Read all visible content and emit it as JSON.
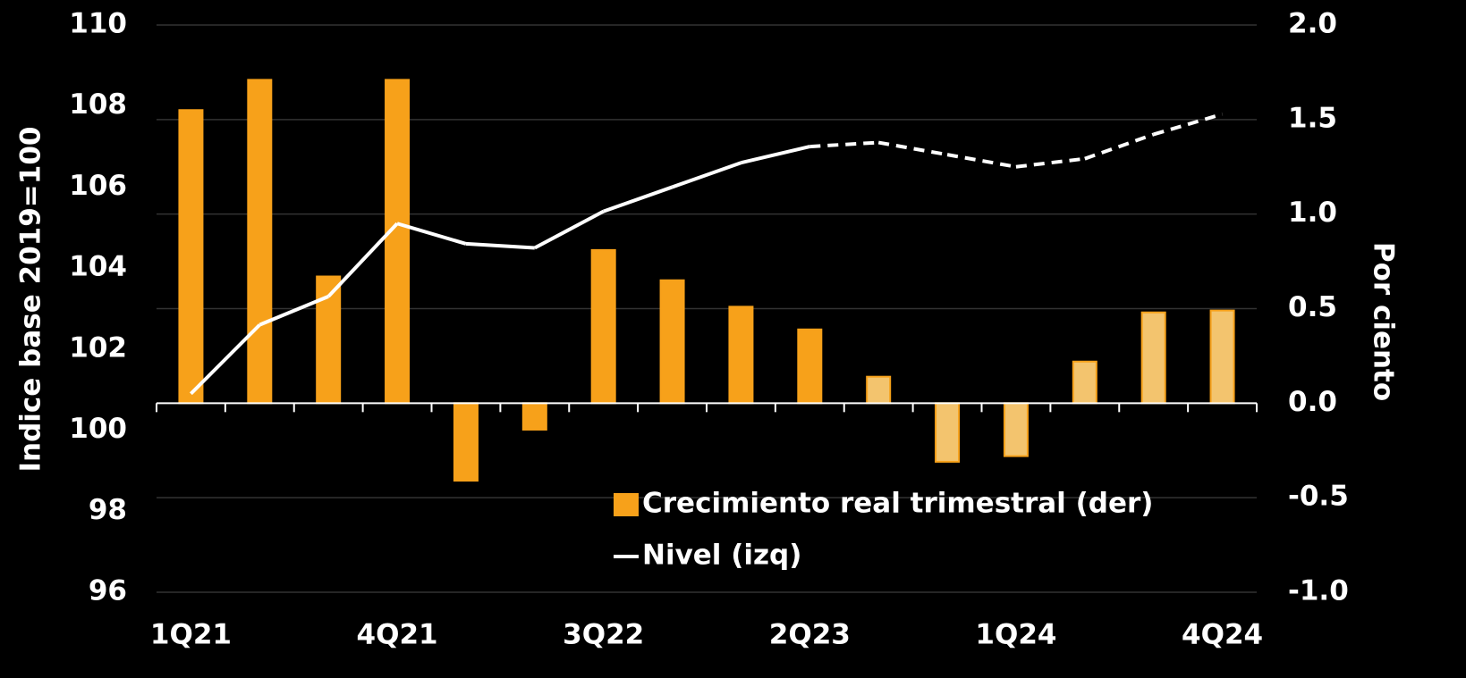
{
  "chart_data": {
    "type": "bar",
    "categories": [
      "1Q21",
      null,
      null,
      "4Q21",
      null,
      null,
      "3Q22",
      null,
      null,
      "2Q23",
      null,
      null,
      "1Q24",
      null,
      null,
      "4Q24"
    ],
    "series": [
      {
        "name": "Crecimiento real trimestral (der)",
        "type": "bar",
        "axis": "y2",
        "color": "#f7a11a",
        "colors": [
          "#f7a11a",
          "#f7a11a",
          "#f7a11a",
          "#f7a11a",
          "#f7a11a",
          "#f7a11a",
          "#f7a11a",
          "#f7a11a",
          "#f7a11a",
          "#f7a11a",
          "#f3c46e",
          "#f3c46e",
          "#f3c46e",
          "#f3c46e",
          "#f3c46e",
          "#f3c46e"
        ],
        "values": [
          1.55,
          1.71,
          0.67,
          1.71,
          -0.41,
          -0.14,
          0.81,
          0.65,
          0.51,
          0.39,
          0.14,
          -0.31,
          -0.28,
          0.22,
          0.48,
          0.49
        ]
      },
      {
        "name": "Nivel (izq)",
        "type": "line",
        "axis": "y",
        "color": "#ffffff",
        "line_styles": [
          "solid",
          "solid",
          "solid",
          "solid",
          "solid",
          "solid",
          "solid",
          "solid",
          "solid",
          "solid",
          "dashed",
          "dashed",
          "dashed",
          "dashed",
          "dashed",
          "dashed"
        ],
        "values": [
          100.9,
          102.6,
          103.3,
          105.1,
          104.6,
          104.5,
          105.4,
          106.0,
          106.6,
          107.0,
          107.1,
          106.8,
          106.5,
          106.7,
          107.3,
          107.8
        ]
      }
    ],
    "y_label": "Indice base 2019=100",
    "y2_label": "Por ciento",
    "ylim": [
      96,
      110
    ],
    "yticks": [
      96,
      98,
      100,
      102,
      104,
      106,
      108,
      110
    ],
    "y2lim": [
      -1.0,
      2.0
    ],
    "y2ticks": [
      {
        "value": -1.0,
        "label": "-1.0"
      },
      -0.5,
      {
        "value": 0.0,
        "label": "0.0"
      },
      0.5,
      {
        "value": 1.0,
        "label": "1.0"
      },
      1.5,
      {
        "value": 2.0,
        "label": "2.0"
      }
    ],
    "grid": true
  }
}
